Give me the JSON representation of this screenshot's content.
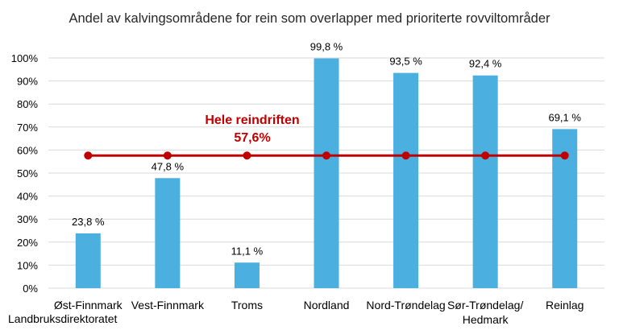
{
  "chart_data": {
    "type": "bar",
    "title": "Andel av kalvingsområdene for rein som overlapper med prioriterte rovviltområder",
    "categories": [
      "Øst-Finnmark",
      "Vest-Finnmark",
      "Troms",
      "Nordland",
      "Nord-Trøndelag",
      "Sør-Trøndelag/\nHedmark",
      "Reinlag"
    ],
    "values": [
      23.8,
      47.8,
      11.1,
      99.8,
      93.5,
      92.4,
      69.1
    ],
    "value_labels": [
      "23,8 %",
      "47,8 %",
      "11,1 %",
      "99,8 %",
      "93,5 %",
      "92,4 %",
      "69,1 %"
    ],
    "ylim": [
      0,
      100
    ],
    "yticks": [
      0,
      10,
      20,
      30,
      40,
      50,
      60,
      70,
      80,
      90,
      100
    ],
    "ytick_labels": [
      "0%",
      "10%",
      "20%",
      "30%",
      "40%",
      "50%",
      "60%",
      "70%",
      "80%",
      "90%",
      "100%"
    ],
    "grid": true,
    "bar_color": "#4BAFE0",
    "reference_line": {
      "value": 57.6,
      "label": "Hele reindriften",
      "value_label": "57,6%",
      "color": "#C00000"
    }
  },
  "source_text": "Landbruksdirektoratet"
}
